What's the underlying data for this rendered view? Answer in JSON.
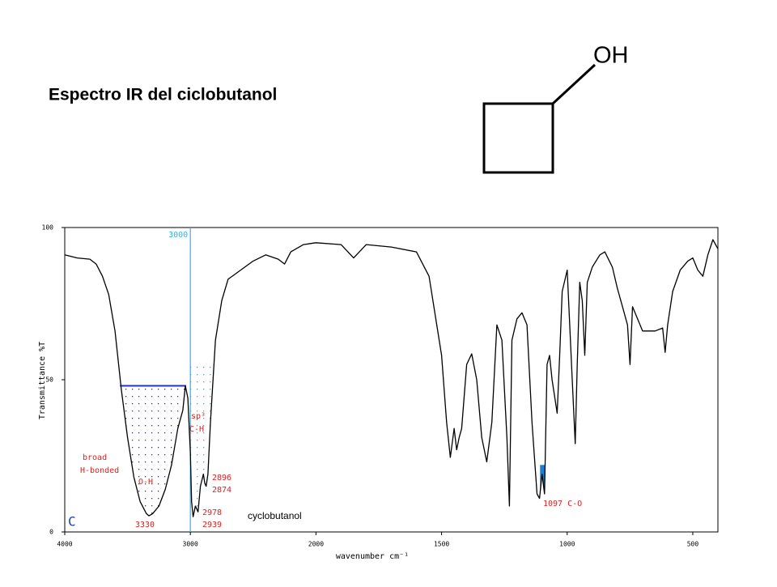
{
  "slide": {
    "title": "Espectro IR del ciclobutanol",
    "molecule_label": "OH"
  },
  "chart_data": {
    "type": "line",
    "xlabel": "wavenumber cm⁻¹",
    "ylabel": "Transmittance %T",
    "xlim": [
      4000,
      400
    ],
    "x_scale_change": {
      "at": 2000,
      "factor": 2
    },
    "xticks": [
      4000,
      3000,
      2000,
      1500,
      1000,
      500
    ],
    "ylim": [
      0,
      100
    ],
    "yticks": [
      0,
      50,
      100
    ],
    "color": "#000000",
    "x": [
      4000,
      3900,
      3800,
      3750,
      3700,
      3650,
      3600,
      3550,
      3500,
      3450,
      3400,
      3350,
      3330,
      3300,
      3250,
      3200,
      3150,
      3100,
      3060,
      3040,
      3020,
      3000,
      2990,
      2978,
      2960,
      2939,
      2920,
      2896,
      2885,
      2874,
      2860,
      2840,
      2800,
      2750,
      2700,
      2600,
      2500,
      2400,
      2300,
      2250,
      2200,
      2100,
      2000,
      1900,
      1850,
      1800,
      1700,
      1600,
      1550,
      1500,
      1480,
      1465,
      1450,
      1440,
      1430,
      1420,
      1400,
      1380,
      1360,
      1340,
      1320,
      1300,
      1280,
      1260,
      1240,
      1230,
      1220,
      1200,
      1180,
      1160,
      1140,
      1120,
      1110,
      1100,
      1090,
      1080,
      1070,
      1060,
      1040,
      1030,
      1020,
      1000,
      990,
      980,
      968,
      960,
      950,
      940,
      930,
      920,
      900,
      870,
      850,
      820,
      800,
      780,
      760,
      750,
      740,
      720,
      700,
      650,
      620,
      610,
      600,
      580,
      550,
      520,
      500,
      480,
      460,
      440,
      420,
      400
    ],
    "values": [
      91,
      90,
      89.6,
      88,
      84,
      78,
      66,
      47,
      31,
      18,
      10,
      6,
      5.3,
      6,
      8.5,
      14,
      22,
      34,
      40,
      48,
      44,
      26,
      10,
      5,
      8.5,
      6.6,
      15,
      19,
      16,
      15,
      19,
      36,
      63,
      76,
      83,
      86,
      89,
      91,
      89.6,
      88,
      92,
      94.4,
      95,
      94.4,
      90,
      94.4,
      93.6,
      92,
      84,
      58,
      36,
      24.5,
      34,
      27,
      31,
      34,
      55,
      58.5,
      50,
      31,
      23,
      36,
      68,
      63,
      31,
      8.5,
      63,
      70,
      72,
      68,
      36,
      12.5,
      11,
      19,
      12.5,
      55,
      58,
      50,
      39,
      58,
      79,
      86,
      68,
      50,
      29,
      55,
      82,
      76,
      58,
      82,
      87,
      91,
      92,
      87,
      80,
      74,
      68,
      55,
      74,
      70,
      66,
      66,
      67,
      59,
      68,
      79,
      86,
      89,
      90,
      86,
      84,
      91,
      96,
      93
    ],
    "vlines": [
      3000
    ],
    "vline_color": "#29b6e8",
    "regions": [
      {
        "x": [
          3560,
          3035
        ],
        "top": 48,
        "color": "#2233cc",
        "style": "dots"
      },
      {
        "x": [
          3000,
          2825
        ],
        "top": 56,
        "color": "#29b6e8",
        "style": "dots"
      },
      {
        "x": [
          1108,
          1088
        ],
        "top": 22,
        "color": "#1a7fd0",
        "style": "solid"
      }
    ],
    "annotation_color": "#e0201c",
    "annotations": [
      "broad",
      "H-bonded",
      "O-H",
      "3330",
      "sp³",
      "C-H",
      "2896",
      "2874",
      "2978",
      "2939",
      "1097  C-O"
    ],
    "sample_name": "cyclobutanol",
    "corner_letter": "C"
  }
}
